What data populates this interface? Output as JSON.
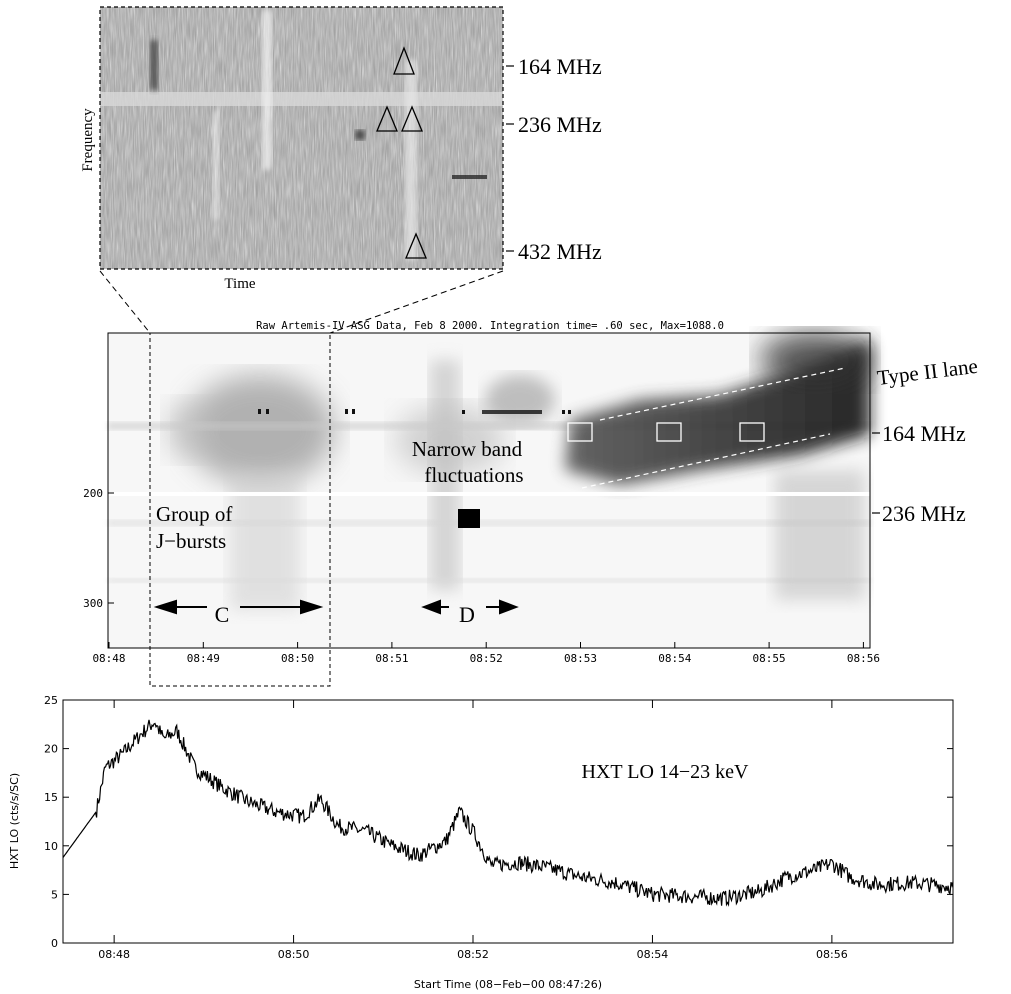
{
  "chart_data": [
    {
      "type": "heatmap",
      "panel": "zoom inset",
      "xlabel": "Time",
      "ylabel": "Frequency",
      "frequency_markers": [
        "164 MHz",
        "236 MHz",
        "432 MHz"
      ],
      "annotations": [
        {
          "marker": "triangle",
          "time_fraction": 0.75,
          "frequency_mhz": 164
        },
        {
          "marker": "triangle",
          "time_fraction": 0.71,
          "frequency_mhz": 236
        },
        {
          "marker": "triangle",
          "time_fraction": 0.78,
          "frequency_mhz": 236
        },
        {
          "marker": "triangle",
          "time_fraction": 0.79,
          "frequency_mhz": 432
        }
      ]
    },
    {
      "type": "heatmap",
      "panel": "dynamic spectrum",
      "title": "Raw  Artemis-IV  ASG Data, Feb  8 2000. Integration time=  .60 sec, Max=1088.0",
      "x_ticks": [
        "08:48",
        "08:49",
        "08:50",
        "08:51",
        "08:52",
        "08:53",
        "08:54",
        "08:55",
        "08:56"
      ],
      "y_ticks": [
        "200",
        "300"
      ],
      "frequency_markers": [
        "164 MHz",
        "236 MHz"
      ],
      "labels": {
        "type_ii": "Type II lane",
        "narrow_band_1": "Narrow band",
        "narrow_band_2": "fluctuations",
        "j_bursts_1": "Group of",
        "j_bursts_2": "J−bursts",
        "region_c": "C",
        "region_d": "D"
      },
      "regions": [
        {
          "name": "C",
          "start": "08:48:36",
          "end": "08:50:28"
        },
        {
          "name": "D",
          "start": "08:51:36",
          "end": "08:52:40"
        }
      ],
      "white_boxes_at": [
        "08:53:18",
        "08:54:18",
        "08:55:18"
      ]
    },
    {
      "type": "line",
      "panel": "hard x-ray",
      "legend": "HXT LO 14−23 keV",
      "ylabel": "HXT LO (cts/s/SC)",
      "xlabel": "Start Time (08−Feb−00 08:47:26)",
      "x_ticks": [
        "08:48",
        "08:50",
        "08:52",
        "08:54",
        "08:56"
      ],
      "y_ticks": [
        "0",
        "5",
        "10",
        "15",
        "20",
        "25"
      ],
      "ylim": [
        0,
        25
      ],
      "xlim_minutes": [
        47.43,
        57.35
      ],
      "x_minutes": [
        47.43,
        47.8,
        47.9,
        48.1,
        48.3,
        48.45,
        48.55,
        48.7,
        48.9,
        49.2,
        49.5,
        49.8,
        50.1,
        50.3,
        50.5,
        50.8,
        51.1,
        51.4,
        51.7,
        51.85,
        52.0,
        52.2,
        52.5,
        52.8,
        53.2,
        53.6,
        54.0,
        54.4,
        54.8,
        55.2,
        55.5,
        55.8,
        56.0,
        56.2,
        56.5,
        56.9,
        57.35
      ],
      "y_counts": [
        8.8,
        13.5,
        18.0,
        19.5,
        21.5,
        22.8,
        21.0,
        21.8,
        18.0,
        16.0,
        14.5,
        13.5,
        13.0,
        14.8,
        12.0,
        11.5,
        10.0,
        9.0,
        10.5,
        13.5,
        11.5,
        8.0,
        8.3,
        7.8,
        6.8,
        6.2,
        5.0,
        4.8,
        4.6,
        5.3,
        6.8,
        7.5,
        8.2,
        6.8,
        6.0,
        6.2,
        5.8
      ]
    }
  ]
}
